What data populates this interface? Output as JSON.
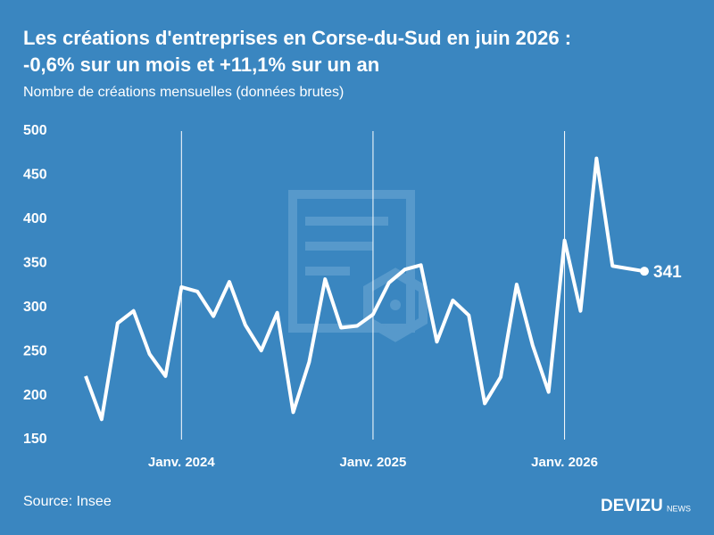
{
  "chart_data": {
    "type": "line",
    "title": "Les créations d'entreprises en Corse-du-Sud en juin 2026 :",
    "title_line2": "-0,6% sur un mois et +11,1% sur un an",
    "subtitle": "Nombre de créations mensuelles (données brutes)",
    "source": "Source: Insee",
    "brand": "DEVIZU",
    "brand_suffix": "NEWS",
    "categories": [
      null,
      null,
      null,
      null,
      null,
      null,
      "Janv. 2024",
      null,
      null,
      null,
      null,
      null,
      null,
      null,
      null,
      null,
      null,
      null,
      "Janv. 2025",
      null,
      null,
      null,
      null,
      null,
      null,
      null,
      null,
      null,
      null,
      null,
      "Janv. 2026",
      null,
      null,
      null,
      null,
      null
    ],
    "series": [
      {
        "name": "Créations",
        "color": "#ffffff",
        "values": [
          222,
          173,
          282,
          296,
          247,
          222,
          323,
          318,
          290,
          329,
          280,
          251,
          294,
          181,
          238,
          332,
          277,
          279,
          292,
          328,
          343,
          348,
          261,
          308,
          291,
          191,
          221,
          326,
          257,
          204,
          376,
          296,
          469,
          347,
          344,
          341
        ]
      }
    ],
    "ylim": [
      150,
      500
    ],
    "yticks": [
      150,
      200,
      250,
      300,
      350,
      400,
      450,
      500
    ],
    "grid": false,
    "background": "#3a86c0"
  }
}
